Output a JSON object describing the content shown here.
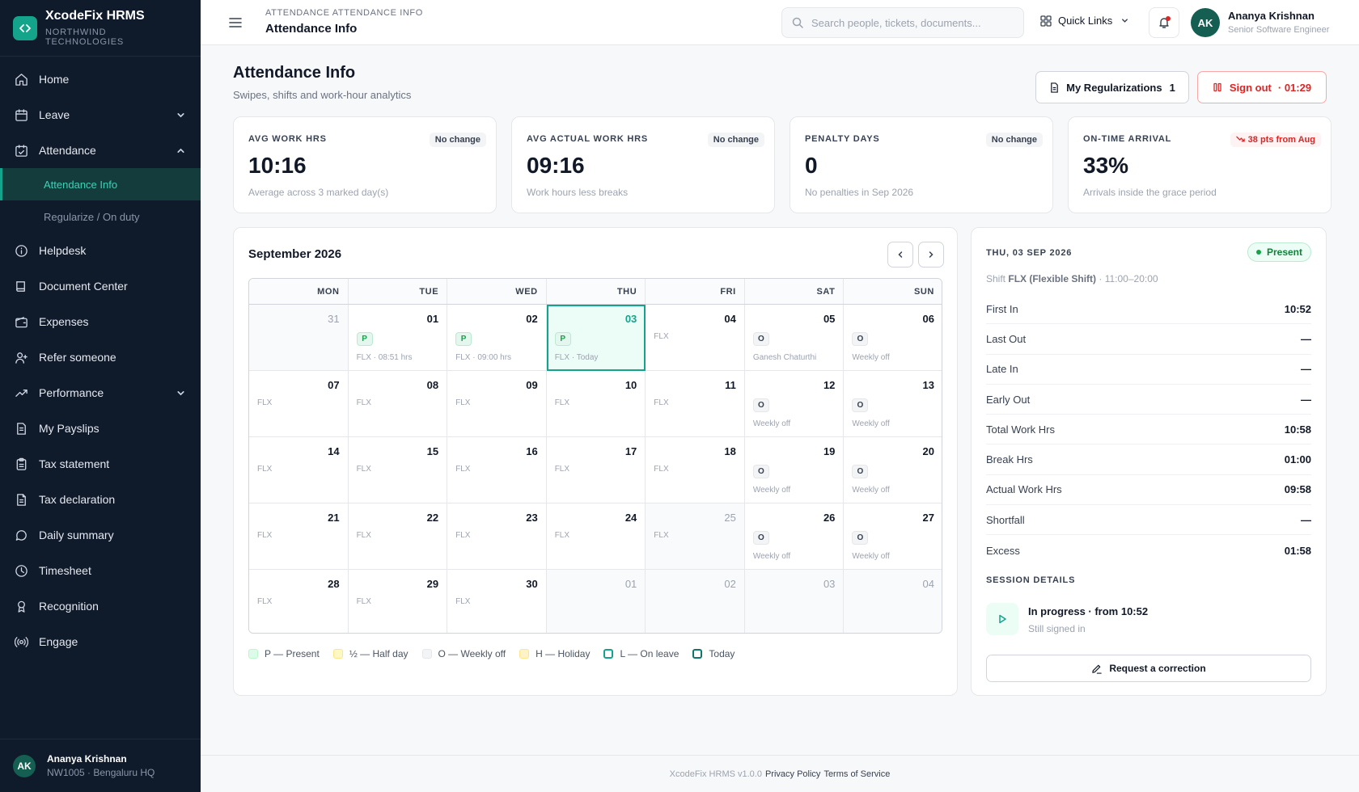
{
  "brand": {
    "name": "XcodeFix HRMS",
    "org": "NORTHWIND TECHNOLOGIES"
  },
  "sidebar": {
    "items": [
      {
        "label": "Home",
        "icon": "home-icon"
      },
      {
        "label": "Leave",
        "icon": "calendar-icon"
      },
      {
        "label": "Attendance",
        "icon": "calendar-check-icon"
      },
      {
        "label": "Helpdesk",
        "icon": "info-icon"
      },
      {
        "label": "Document Center",
        "icon": "book-icon"
      },
      {
        "label": "Expenses",
        "icon": "wallet-icon"
      },
      {
        "label": "Refer someone",
        "icon": "user-plus-icon"
      },
      {
        "label": "Performance",
        "icon": "trending-up-icon"
      },
      {
        "label": "My Payslips",
        "icon": "file-icon"
      },
      {
        "label": "Tax statement",
        "icon": "clipboard-icon"
      },
      {
        "label": "Tax declaration",
        "icon": "file-text-icon"
      },
      {
        "label": "Daily summary",
        "icon": "message-icon"
      },
      {
        "label": "Timesheet",
        "icon": "clock-icon"
      },
      {
        "label": "Recognition",
        "icon": "award-icon"
      },
      {
        "label": "Engage",
        "icon": "radio-icon"
      }
    ],
    "sub_items": [
      {
        "label": "Attendance Info",
        "active": true
      },
      {
        "label": "Regularize / On duty",
        "active": false
      }
    ],
    "user": {
      "initials": "AK",
      "name": "Ananya Krishnan",
      "meta": "NW1005 · Bengaluru HQ"
    }
  },
  "topbar": {
    "breadcrumb": "ATTENDANCE  ATTENDANCE INFO",
    "title": "Attendance Info",
    "search_placeholder": "Search people, tickets, documents...",
    "quick_links": "Quick Links",
    "user": {
      "initials": "AK",
      "name": "Ananya Krishnan",
      "role": "Senior Software Engineer"
    }
  },
  "page": {
    "title": "Attendance Info",
    "subtitle": "Swipes, shifts and work-hour analytics",
    "regularizations_label": "My Regularizations",
    "regularizations_count": "1",
    "signout_label": "Sign out",
    "signout_timer": "· 01:29"
  },
  "stats": [
    {
      "label": "AVG WORK HRS",
      "badge": "No change",
      "value": "10:16",
      "note": "Average across 3 marked day(s)"
    },
    {
      "label": "AVG ACTUAL WORK HRS",
      "badge": "No change",
      "value": "09:16",
      "note": "Work hours less breaks"
    },
    {
      "label": "PENALTY DAYS",
      "badge": "No change",
      "value": "0",
      "note": "No penalties in Sep 2026"
    },
    {
      "label": "ON-TIME ARRIVAL",
      "badge": "38 pts from Aug",
      "value": "33%",
      "note": "Arrivals inside the grace period"
    }
  ],
  "calendar": {
    "month": "September 2026",
    "weekdays": [
      "MON",
      "TUE",
      "WED",
      "THU",
      "FRI",
      "SAT",
      "SUN"
    ],
    "days": [
      {
        "day": "31",
        "muted": true,
        "chip": "",
        "note": ""
      },
      {
        "day": "01",
        "chip": "P",
        "note": "FLX · 08:51 hrs"
      },
      {
        "day": "02",
        "chip": "P",
        "note": "FLX · 09:00 hrs"
      },
      {
        "day": "03",
        "chip": "P",
        "note": "FLX · Today",
        "today": true
      },
      {
        "day": "04",
        "chip": "",
        "note": "FLX"
      },
      {
        "day": "05",
        "chip": "O",
        "note": "Ganesh Chaturthi"
      },
      {
        "day": "06",
        "chip": "O",
        "note": "Weekly off"
      },
      {
        "day": "07",
        "chip": "",
        "note": "FLX"
      },
      {
        "day": "08",
        "chip": "",
        "note": "FLX"
      },
      {
        "day": "09",
        "chip": "",
        "note": "FLX"
      },
      {
        "day": "10",
        "chip": "",
        "note": "FLX"
      },
      {
        "day": "11",
        "chip": "",
        "note": "FLX"
      },
      {
        "day": "12",
        "chip": "O",
        "note": "Weekly off"
      },
      {
        "day": "13",
        "chip": "O",
        "note": "Weekly off"
      },
      {
        "day": "14",
        "chip": "",
        "note": "FLX"
      },
      {
        "day": "15",
        "chip": "",
        "note": "FLX"
      },
      {
        "day": "16",
        "chip": "",
        "note": "FLX"
      },
      {
        "day": "17",
        "chip": "",
        "note": "FLX"
      },
      {
        "day": "18",
        "chip": "",
        "note": "FLX"
      },
      {
        "day": "19",
        "chip": "O",
        "note": "Weekly off"
      },
      {
        "day": "20",
        "chip": "O",
        "note": "Weekly off"
      },
      {
        "day": "21",
        "chip": "",
        "note": "FLX"
      },
      {
        "day": "22",
        "chip": "",
        "note": "FLX"
      },
      {
        "day": "23",
        "chip": "",
        "note": "FLX"
      },
      {
        "day": "24",
        "chip": "",
        "note": "FLX"
      },
      {
        "day": "25",
        "chip": "",
        "note": "FLX",
        "muted": true
      },
      {
        "day": "26",
        "chip": "O",
        "note": "Weekly off"
      },
      {
        "day": "27",
        "chip": "O",
        "note": "Weekly off"
      },
      {
        "day": "28",
        "chip": "",
        "note": "FLX"
      },
      {
        "day": "29",
        "chip": "",
        "note": "FLX"
      },
      {
        "day": "30",
        "chip": "",
        "note": "FLX"
      },
      {
        "day": "01",
        "muted": true,
        "chip": "",
        "note": ""
      },
      {
        "day": "02",
        "muted": true,
        "chip": "",
        "note": ""
      },
      {
        "day": "03",
        "muted": true,
        "chip": "",
        "note": ""
      },
      {
        "day": "04",
        "muted": true,
        "chip": "",
        "note": ""
      }
    ],
    "legend": [
      {
        "label": "P — Present",
        "color": "#dcfce7",
        "border": "#bbf7d0"
      },
      {
        "label": "½ — Half day",
        "color": "#fef9c3",
        "border": "#fde68a"
      },
      {
        "label": "O — Weekly off",
        "color": "#f3f4f6",
        "border": "#e5e7eb"
      },
      {
        "label": "H — Holiday",
        "color": "#fef3c7",
        "border": "#fde68a"
      },
      {
        "label": "L — On leave",
        "color": "#ffffff",
        "border": "#14a38b"
      },
      {
        "label": "Today",
        "color": "#ffffff",
        "border": "#0f766e"
      }
    ]
  },
  "details": {
    "date": "THU, 03 SEP 2026",
    "status": "Present",
    "shift_prefix": "Shift",
    "shift_code": "FLX (Flexible Shift)",
    "shift_time": "· 11:00–20:00",
    "rows": [
      {
        "label": "First In",
        "value": "10:52"
      },
      {
        "label": "Last Out",
        "value": "—"
      },
      {
        "label": "Late In",
        "value": "—"
      },
      {
        "label": "Early Out",
        "value": "—"
      },
      {
        "label": "Total Work Hrs",
        "value": "10:58"
      },
      {
        "label": "Break Hrs",
        "value": "01:00"
      },
      {
        "label": "Actual Work Hrs",
        "value": "09:58"
      },
      {
        "label": "Shortfall",
        "value": "—"
      },
      {
        "label": "Excess",
        "value": "01:58"
      }
    ],
    "session_label": "SESSION DETAILS",
    "session_title": "In progress · from 10:52",
    "session_sub": "Still signed in",
    "correction_label": "Request a correction"
  },
  "footer": {
    "version": "XcodeFix HRMS v1.0.0",
    "privacy": "Privacy Policy",
    "terms": "Terms of Service"
  },
  "colors": {
    "accent": "#14a38b",
    "sidebar_bg": "#0f1a2b",
    "danger": "#dc2626",
    "present": "#16a34a"
  }
}
